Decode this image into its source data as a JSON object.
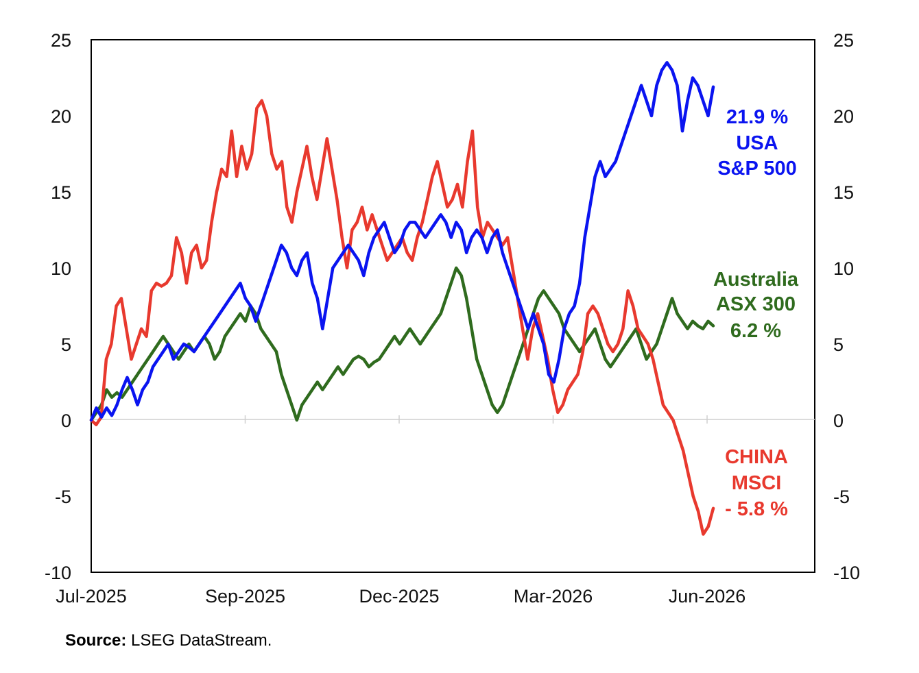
{
  "chart_data": {
    "type": "line",
    "ylim": [
      -10,
      25
    ],
    "y_ticks": [
      "25",
      "20",
      "15",
      "10",
      "5",
      "0",
      "-5",
      "-10"
    ],
    "x_ticks": [
      "Jul-2025",
      "Sep-2025",
      "Dec-2025",
      "Mar-2026",
      "Jun-2026"
    ],
    "grid": false,
    "series": [
      {
        "name": "CHINA MSCI",
        "color": "#e8392e",
        "end_label": [
          "CHINA",
          "MSCI",
          "- 5.8 %"
        ],
        "values": [
          0,
          -0.3,
          0.2,
          4,
          5,
          7.5,
          8,
          6,
          4,
          5,
          6,
          5.5,
          8.5,
          9,
          8.8,
          9,
          9.5,
          12,
          11,
          9,
          11,
          11.5,
          10,
          10.5,
          13,
          15,
          16.5,
          16,
          19,
          16,
          18,
          16.5,
          17.5,
          20.5,
          21,
          20,
          17.5,
          16.5,
          17,
          14,
          13,
          15,
          16.5,
          18,
          16,
          14.5,
          16.5,
          18.5,
          16.5,
          14.5,
          12,
          10,
          12.5,
          13,
          14,
          12.5,
          13.5,
          12.5,
          11.5,
          10.5,
          11,
          11.5,
          12,
          11,
          10.5,
          12,
          13,
          14.5,
          16,
          17,
          15.5,
          14,
          14.5,
          15.5,
          14,
          17,
          19,
          14,
          12,
          13,
          12.5,
          12,
          11.5,
          12,
          10,
          8,
          6,
          4,
          6,
          7,
          5.5,
          4,
          2,
          0.5,
          1,
          2,
          2.5,
          3,
          4.5,
          7,
          7.5,
          7,
          6,
          5,
          4.5,
          5,
          6,
          8.5,
          7.5,
          6,
          5.5,
          5,
          4,
          2.5,
          1,
          0.5,
          0,
          -1,
          -2,
          -3.5,
          -5,
          -6,
          -7.5,
          -7,
          -5.8
        ]
      },
      {
        "name": "USA S&P 500",
        "color": "#0a14f0",
        "end_label": [
          "21.9 %",
          "USA",
          "S&P 500"
        ],
        "values": [
          0,
          0.8,
          0.2,
          0.8,
          0.3,
          1,
          2,
          2.8,
          2,
          1,
          2,
          2.5,
          3.5,
          4,
          4.5,
          5,
          4,
          4.5,
          5,
          4.8,
          4.5,
          5,
          5.5,
          6,
          6.5,
          7,
          7.5,
          8,
          8.5,
          9,
          8,
          7.5,
          6.5,
          7.5,
          8.5,
          9.5,
          10.5,
          11.5,
          11,
          10,
          9.5,
          10.5,
          11,
          9,
          8,
          6,
          8,
          10,
          10.5,
          11,
          11.5,
          11,
          10.5,
          9.5,
          11,
          12,
          12.5,
          13,
          12,
          11,
          11.5,
          12.5,
          13,
          13,
          12.5,
          12,
          12.5,
          13,
          13.5,
          13,
          12,
          13,
          12.5,
          11,
          12,
          12.5,
          12,
          11,
          12,
          12.5,
          11,
          10,
          9,
          8,
          7,
          6,
          7,
          6,
          5,
          3,
          2.5,
          4,
          6,
          7,
          7.5,
          9,
          12,
          14,
          16,
          17,
          16,
          16.5,
          17,
          18,
          19,
          20,
          21,
          22,
          21,
          20,
          22,
          23,
          23.5,
          23,
          22,
          19,
          21,
          22.5,
          22,
          21,
          20,
          21.9
        ]
      },
      {
        "name": "Australia ASX 300",
        "color": "#2f6b1e",
        "end_label": [
          "Australia",
          "ASX 300",
          "6.2 %"
        ],
        "values": [
          0,
          0.5,
          1,
          2,
          1.5,
          1.8,
          1.5,
          2,
          2.5,
          3,
          3.5,
          4,
          4.5,
          5,
          5.5,
          5,
          4.5,
          4,
          4.5,
          5,
          4.5,
          5,
          5.5,
          5,
          4,
          4.5,
          5.5,
          6,
          6.5,
          7,
          6.5,
          7.5,
          7,
          6,
          5.5,
          5,
          4.5,
          3,
          2,
          1,
          0,
          1,
          1.5,
          2,
          2.5,
          2,
          2.5,
          3,
          3.5,
          3,
          3.5,
          4,
          4.2,
          4,
          3.5,
          3.8,
          4,
          4.5,
          5,
          5.5,
          5,
          5.5,
          6,
          5.5,
          5,
          5.5,
          6,
          6.5,
          7,
          8,
          9,
          10,
          9.5,
          8,
          6,
          4,
          3,
          2,
          1,
          0.5,
          1,
          2,
          3,
          4,
          5,
          6,
          7,
          8,
          8.5,
          8,
          7.5,
          7,
          6,
          5.5,
          5,
          4.5,
          5,
          5.5,
          6,
          5,
          4,
          3.5,
          4,
          4.5,
          5,
          5.5,
          6,
          5,
          4,
          4.5,
          5,
          6,
          7,
          8,
          7,
          6.5,
          6,
          6.5,
          6.2,
          6,
          6.5,
          6.2
        ]
      }
    ]
  },
  "source": {
    "prefix": "Source:",
    "text": " LSEG DataStream."
  }
}
